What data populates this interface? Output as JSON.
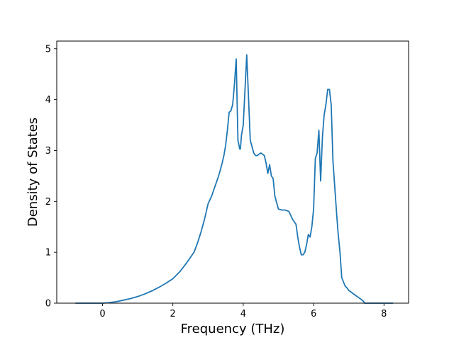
{
  "chart_data": {
    "type": "line",
    "title": "",
    "xlabel": "Frequency (THz)",
    "ylabel": "Density of States",
    "xlim": [
      -1.3,
      8.7
    ],
    "ylim": [
      0,
      5.15
    ],
    "xticks": [
      0,
      2,
      4,
      6,
      8
    ],
    "yticks": [
      0,
      1,
      2,
      3,
      4,
      5
    ],
    "grid": false,
    "legend": "none",
    "line_color": "#1f77b4",
    "series": [
      {
        "x": [
          -0.76,
          0.0,
          0.2,
          0.4,
          0.6,
          0.8,
          1.0,
          1.2,
          1.4,
          1.6,
          1.8,
          2.0,
          2.2,
          2.4,
          2.5,
          2.6,
          2.7,
          2.8,
          2.9,
          3.0,
          3.1,
          3.2,
          3.3,
          3.35,
          3.4,
          3.45,
          3.5,
          3.55,
          3.6,
          3.65,
          3.7,
          3.75,
          3.8,
          3.85,
          3.9,
          3.92,
          3.95,
          4.0,
          4.1,
          4.2,
          4.3,
          4.35,
          4.4,
          4.45,
          4.5,
          4.55,
          4.6,
          4.65,
          4.7,
          4.75,
          4.8,
          4.85,
          4.9,
          5.0,
          5.1,
          5.2,
          5.3,
          5.4,
          5.5,
          5.55,
          5.6,
          5.65,
          5.7,
          5.75,
          5.8,
          5.85,
          5.9,
          5.95,
          6.0,
          6.05,
          6.1,
          6.15,
          6.2,
          6.25,
          6.3,
          6.35,
          6.4,
          6.45,
          6.5,
          6.55,
          6.6,
          6.65,
          6.7,
          6.75,
          6.8,
          6.9,
          6.95,
          7.0,
          7.1,
          7.2,
          7.3,
          7.4,
          7.45,
          7.5,
          7.6,
          7.8,
          8.0,
          8.25
        ],
        "y": [
          0.0,
          0.0,
          0.01,
          0.03,
          0.06,
          0.09,
          0.13,
          0.18,
          0.24,
          0.31,
          0.39,
          0.48,
          0.62,
          0.8,
          0.9,
          1.0,
          1.18,
          1.4,
          1.65,
          1.95,
          2.1,
          2.3,
          2.5,
          2.62,
          2.75,
          2.9,
          3.1,
          3.4,
          3.75,
          3.78,
          3.9,
          4.3,
          4.8,
          3.2,
          3.03,
          3.03,
          3.3,
          3.5,
          4.88,
          3.2,
          2.95,
          2.9,
          2.9,
          2.93,
          2.95,
          2.93,
          2.9,
          2.75,
          2.55,
          2.72,
          2.5,
          2.45,
          2.1,
          1.85,
          1.83,
          1.83,
          1.8,
          1.65,
          1.55,
          1.3,
          1.1,
          0.95,
          0.95,
          1.0,
          1.15,
          1.35,
          1.3,
          1.5,
          1.85,
          2.85,
          2.95,
          3.4,
          2.4,
          3.25,
          3.7,
          3.9,
          4.2,
          4.2,
          3.9,
          2.8,
          2.3,
          1.8,
          1.35,
          1.0,
          0.5,
          0.33,
          0.3,
          0.25,
          0.2,
          0.15,
          0.1,
          0.05,
          0.0,
          0.0,
          0.0,
          0.0,
          0.0,
          0.0
        ]
      }
    ]
  }
}
